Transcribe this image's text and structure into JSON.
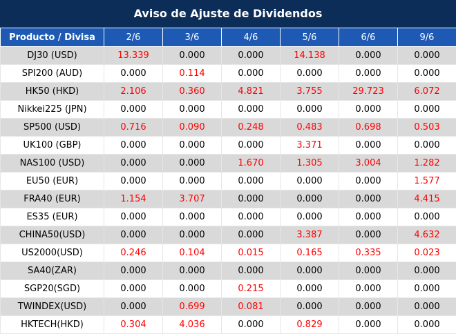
{
  "title": "Aviso de Ajuste de Dividendos",
  "header": {
    "product_label": "Producto / Divisa",
    "dates": [
      "2/6",
      "3/6",
      "4/6",
      "5/6",
      "6/6",
      "9/6"
    ]
  },
  "colors": {
    "title_bg": "#0c2d57",
    "header_bg": "#1e5ab4",
    "row_shade": "#d9d9d9",
    "positive_text": "#ff0000"
  },
  "rows": [
    {
      "product": "DJ30 (USD)",
      "values": [
        "13.339",
        "0.000",
        "0.000",
        "14.138",
        "0.000",
        "0.000"
      ]
    },
    {
      "product": "SPI200 (AUD)",
      "values": [
        "0.000",
        "0.114",
        "0.000",
        "0.000",
        "0.000",
        "0.000"
      ]
    },
    {
      "product": "HK50 (HKD)",
      "values": [
        "2.106",
        "0.360",
        "4.821",
        "3.755",
        "29.723",
        "6.072"
      ]
    },
    {
      "product": "Nikkei225 (JPN)",
      "values": [
        "0.000",
        "0.000",
        "0.000",
        "0.000",
        "0.000",
        "0.000"
      ]
    },
    {
      "product": "SP500 (USD)",
      "values": [
        "0.716",
        "0.090",
        "0.248",
        "0.483",
        "0.698",
        "0.503"
      ]
    },
    {
      "product": "UK100 (GBP)",
      "values": [
        "0.000",
        "0.000",
        "0.000",
        "3.371",
        "0.000",
        "0.000"
      ]
    },
    {
      "product": "NAS100 (USD)",
      "values": [
        "0.000",
        "0.000",
        "1.670",
        "1.305",
        "3.004",
        "1.282"
      ]
    },
    {
      "product": "EU50 (EUR)",
      "values": [
        "0.000",
        "0.000",
        "0.000",
        "0.000",
        "0.000",
        "1.577"
      ]
    },
    {
      "product": "FRA40 (EUR)",
      "values": [
        "1.154",
        "3.707",
        "0.000",
        "0.000",
        "0.000",
        "4.415"
      ]
    },
    {
      "product": "ES35 (EUR)",
      "values": [
        "0.000",
        "0.000",
        "0.000",
        "0.000",
        "0.000",
        "0.000"
      ]
    },
    {
      "product": "CHINA50(USD)",
      "values": [
        "0.000",
        "0.000",
        "0.000",
        "3.387",
        "0.000",
        "4.632"
      ]
    },
    {
      "product": "US2000(USD)",
      "values": [
        "0.246",
        "0.104",
        "0.015",
        "0.165",
        "0.335",
        "0.023"
      ]
    },
    {
      "product": "SA40(ZAR)",
      "values": [
        "0.000",
        "0.000",
        "0.000",
        "0.000",
        "0.000",
        "0.000"
      ]
    },
    {
      "product": "SGP20(SGD)",
      "values": [
        "0.000",
        "0.000",
        "0.215",
        "0.000",
        "0.000",
        "0.000"
      ]
    },
    {
      "product": "TWINDEX(USD)",
      "values": [
        "0.000",
        "0.699",
        "0.081",
        "0.000",
        "0.000",
        "0.000"
      ]
    },
    {
      "product": "HKTECH(HKD)",
      "values": [
        "0.304",
        "4.036",
        "0.000",
        "0.829",
        "0.000",
        "0.000"
      ]
    }
  ]
}
